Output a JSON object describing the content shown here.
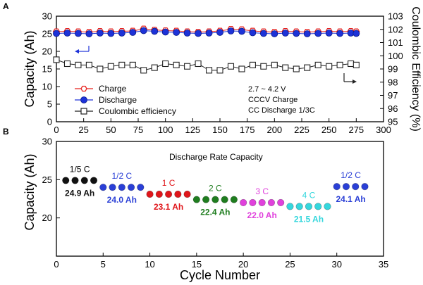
{
  "chart_data": [
    {
      "panel": "A",
      "type": "scatter",
      "xlabel": "",
      "ylabel": "Capacity (Ah)",
      "y2label": "Coulombic Efficiency (%)",
      "xlim": [
        0,
        300
      ],
      "ylim": [
        0,
        30
      ],
      "y2lim": [
        95,
        103
      ],
      "xticks": [
        0,
        25,
        50,
        75,
        100,
        125,
        150,
        175,
        200,
        225,
        250,
        275,
        300
      ],
      "yticks": [
        0,
        5,
        10,
        15,
        20,
        25,
        30
      ],
      "y2ticks": [
        95,
        96,
        97,
        98,
        99,
        100,
        101,
        102,
        103
      ],
      "legend": [
        "Charge",
        "Discharge",
        "Coulombic efficiency"
      ],
      "annotations": [
        "2.7 ~ 4.2 V",
        "CCCV Charge",
        "CC Discharge  1/3C"
      ],
      "series": [
        {
          "name": "Charge",
          "axis": "left",
          "color": "#e8231f",
          "marker": "hexagon-open",
          "x": [
            0,
            10,
            20,
            30,
            40,
            50,
            60,
            70,
            80,
            90,
            100,
            110,
            120,
            130,
            140,
            150,
            160,
            170,
            180,
            190,
            200,
            210,
            220,
            230,
            240,
            250,
            260,
            270,
            275
          ],
          "y": [
            25.6,
            25.7,
            25.6,
            25.5,
            25.7,
            25.6,
            25.7,
            25.8,
            26.4,
            26.1,
            25.9,
            25.8,
            25.6,
            25.5,
            25.6,
            25.8,
            26.3,
            26.2,
            25.8,
            25.6,
            25.5,
            25.7,
            25.6,
            25.5,
            25.6,
            25.7,
            25.6,
            25.7,
            25.6
          ]
        },
        {
          "name": "Discharge",
          "axis": "left",
          "color": "#1d32d8",
          "marker": "circle-filled",
          "x": [
            0,
            10,
            20,
            30,
            40,
            50,
            60,
            70,
            80,
            90,
            100,
            110,
            120,
            130,
            140,
            150,
            160,
            170,
            180,
            190,
            200,
            210,
            220,
            230,
            240,
            250,
            260,
            270,
            275
          ],
          "y": [
            25.1,
            25.2,
            25.1,
            25.0,
            25.2,
            25.1,
            25.2,
            25.4,
            25.9,
            25.7,
            25.5,
            25.4,
            25.2,
            25.1,
            25.2,
            25.4,
            25.8,
            25.7,
            25.3,
            25.1,
            25.0,
            25.2,
            25.1,
            25.0,
            25.1,
            25.2,
            25.1,
            25.2,
            25.1
          ]
        },
        {
          "name": "Coulombic efficiency",
          "axis": "right",
          "color": "#222222",
          "marker": "square-open",
          "x": [
            0,
            10,
            20,
            30,
            40,
            50,
            60,
            70,
            80,
            90,
            100,
            110,
            120,
            130,
            140,
            150,
            160,
            170,
            180,
            190,
            200,
            210,
            220,
            230,
            240,
            250,
            260,
            270,
            275
          ],
          "y": [
            99.7,
            99.4,
            99.3,
            99.3,
            99.0,
            99.2,
            99.3,
            99.3,
            98.9,
            99.1,
            99.4,
            99.3,
            99.2,
            99.4,
            98.9,
            98.9,
            99.2,
            99.0,
            99.3,
            99.2,
            99.3,
            99.1,
            99.0,
            99.1,
            99.3,
            99.2,
            99.3,
            99.4,
            99.3
          ]
        }
      ]
    },
    {
      "panel": "B",
      "type": "scatter",
      "title": "Discharge Rate Capacity",
      "xlabel": "Cycle Number",
      "ylabel": "Capacity (Ah)",
      "xlim": [
        0,
        35
      ],
      "ylim": [
        15,
        30
      ],
      "xticks": [
        0,
        5,
        10,
        15,
        20,
        25,
        30,
        35
      ],
      "yticks": [
        20,
        25,
        30
      ],
      "groups": [
        {
          "rate": "1/5 C",
          "capacity_label": "24.9 Ah",
          "color": "#111111",
          "x": [
            1,
            2,
            3,
            4
          ],
          "y": [
            24.9,
            24.9,
            24.9,
            24.9
          ]
        },
        {
          "rate": "1/2 C",
          "capacity_label": "24.0 Ah",
          "color": "#2a3fd6",
          "x": [
            5,
            6,
            7,
            8,
            9
          ],
          "y": [
            24.0,
            24.0,
            24.0,
            24.0,
            24.0
          ]
        },
        {
          "rate": "1 C",
          "capacity_label": "23.1 Ah",
          "color": "#e0161b",
          "x": [
            10,
            11,
            12,
            13,
            14
          ],
          "y": [
            23.1,
            23.1,
            23.1,
            23.1,
            23.1
          ]
        },
        {
          "rate": "2 C",
          "capacity_label": "22.4 Ah",
          "color": "#1f7d1f",
          "x": [
            15,
            16,
            17,
            18,
            19
          ],
          "y": [
            22.4,
            22.4,
            22.4,
            22.4,
            22.4
          ]
        },
        {
          "rate": "3 C",
          "capacity_label": "22.0 Ah",
          "color": "#e041dc",
          "x": [
            20,
            21,
            22,
            23,
            24
          ],
          "y": [
            22.0,
            22.0,
            22.0,
            22.0,
            22.0
          ]
        },
        {
          "rate": "4 C",
          "capacity_label": "21.5 Ah",
          "color": "#35d7dd",
          "x": [
            25,
            26,
            27,
            28,
            29
          ],
          "y": [
            21.5,
            21.5,
            21.5,
            21.5,
            21.5
          ]
        },
        {
          "rate": "1/2 C",
          "capacity_label": "24.1 Ah",
          "color": "#2a3fd6",
          "x": [
            30,
            31,
            32,
            33
          ],
          "y": [
            24.1,
            24.1,
            24.1,
            24.1
          ]
        }
      ]
    }
  ]
}
